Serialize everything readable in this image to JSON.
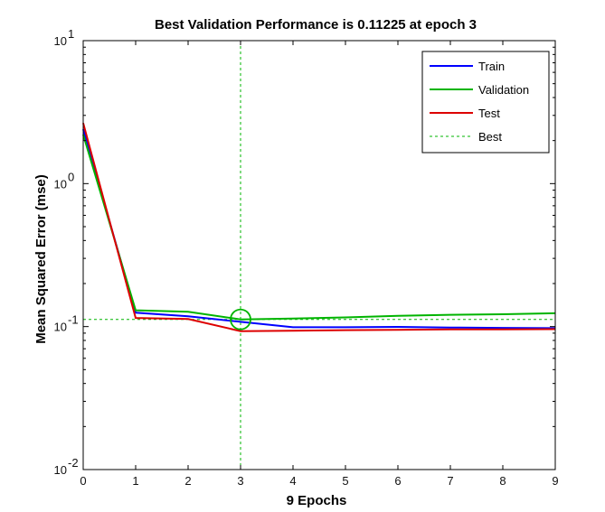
{
  "chart_data": {
    "type": "line",
    "title": "Best Validation Performance is 0.11225 at epoch 3",
    "xlabel": "9 Epochs",
    "ylabel": "Mean Squared Error  (mse)",
    "x_scale": "linear",
    "y_scale": "log",
    "xlim": [
      0,
      9
    ],
    "ylim": [
      0.01,
      10
    ],
    "x_ticks": [
      0,
      1,
      2,
      3,
      4,
      5,
      6,
      7,
      8,
      9
    ],
    "x_tick_labels": [
      "0",
      "1",
      "2",
      "3",
      "4",
      "5",
      "6",
      "7",
      "8",
      "9"
    ],
    "y_ticks": [
      0.01,
      0.1,
      1,
      10
    ],
    "y_tick_labels": [
      {
        "base": "10",
        "exp": "-2"
      },
      {
        "base": "10",
        "exp": "-1"
      },
      {
        "base": "10",
        "exp": "0"
      },
      {
        "base": "10",
        "exp": "1"
      }
    ],
    "grid": false,
    "legend_position": "top-right",
    "x": [
      0,
      1,
      2,
      3,
      4,
      5,
      6,
      7,
      8,
      9
    ],
    "series": [
      {
        "name": "Train",
        "color": "#0000ff",
        "style": "solid",
        "values": [
          2.4,
          0.125,
          0.118,
          0.108,
          0.099,
          0.099,
          0.0995,
          0.0985,
          0.098,
          0.0975
        ]
      },
      {
        "name": "Validation",
        "color": "#00b400",
        "style": "solid",
        "values": [
          2.2,
          0.13,
          0.127,
          0.11225,
          0.114,
          0.116,
          0.119,
          0.121,
          0.122,
          0.124
        ]
      },
      {
        "name": "Test",
        "color": "#dd0000",
        "style": "solid",
        "values": [
          2.65,
          0.115,
          0.113,
          0.093,
          0.0935,
          0.0945,
          0.095,
          0.0955,
          0.0955,
          0.096
        ]
      }
    ],
    "best": {
      "name": "Best",
      "epoch": 3,
      "value": 0.11225,
      "color": "#00b400",
      "style": "dashed"
    }
  }
}
